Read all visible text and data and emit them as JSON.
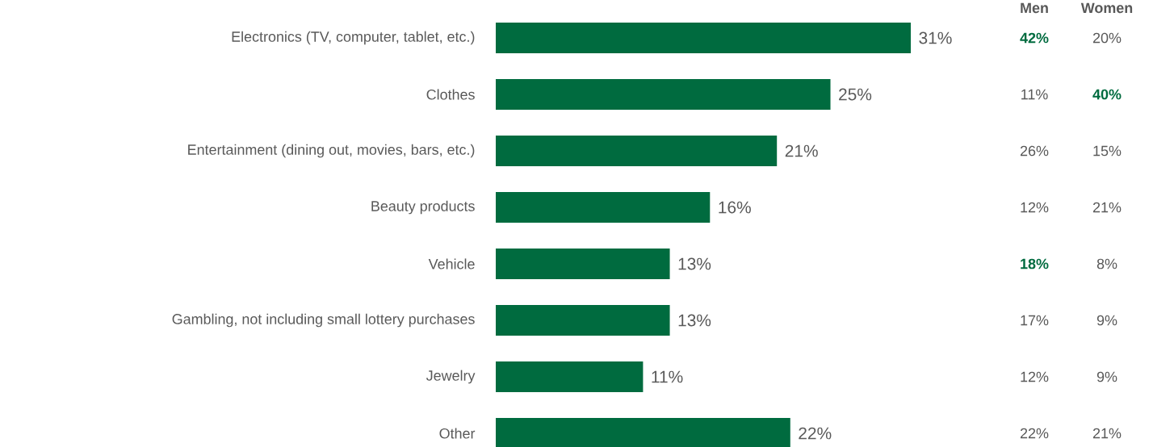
{
  "chart_data": [
    {
      "type": "bar",
      "orientation": "horizontal",
      "color": "#006b3f",
      "data_labels": true,
      "categories": [
        "Electronics (TV, computer, tablet, etc.)",
        "Clothes",
        "Entertainment (dining out, movies, bars, etc.)",
        "Beauty products",
        "Vehicle",
        "Gambling, not including small lottery purchases",
        "Jewelry",
        "Other"
      ],
      "values": [
        31,
        25,
        21,
        16,
        13,
        13,
        11,
        22
      ],
      "value_labels": [
        "31%",
        "25%",
        "21%",
        "16%",
        "13%",
        "13%",
        "11%",
        "22%"
      ]
    },
    {
      "type": "other",
      "color": "#595959",
      "categories": [
        "Men",
        "Women"
      ],
      "cell_labels": [
        [
          "42%",
          "20%"
        ],
        [
          "11%",
          "40%"
        ],
        [
          "26%",
          "15%"
        ],
        [
          "12%",
          "21%"
        ],
        [
          "18%",
          "8%"
        ],
        [
          "17%",
          "9%"
        ],
        [
          "12%",
          "9%"
        ],
        [
          "22%",
          "21%"
        ]
      ],
      "colors": [
        [
          "#006b3f",
          "#595959"
        ],
        [
          "#595959",
          "#006b3f"
        ],
        [
          "#595959",
          "#595959"
        ],
        [
          "#595959",
          "#595959"
        ],
        [
          "#006b3f",
          "#595959"
        ],
        [
          "#595959",
          "#595959"
        ],
        [
          "#595959",
          "#595959"
        ],
        [
          "#595959",
          "#595959"
        ]
      ]
    }
  ]
}
